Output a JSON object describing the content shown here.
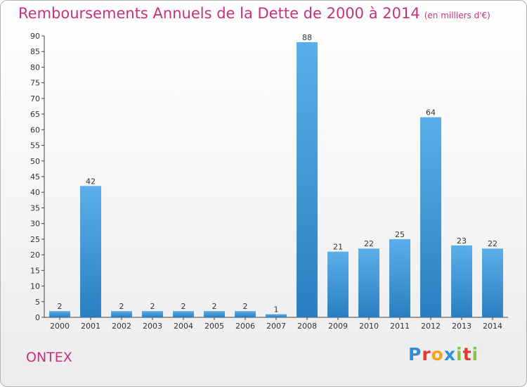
{
  "header": {
    "title": "Remboursements Annuels de la Dette de 2000 à 2014",
    "unit": "(en milliers d'€)"
  },
  "footer": {
    "commune": "ONTEX",
    "logo_text": "Proxiti",
    "logo_colors": [
      "#2e8fd6",
      "#e23a2e",
      "#f5a21a",
      "#2e8fd6",
      "#8cc63f",
      "#e23a2e",
      "#8cc63f"
    ]
  },
  "chart_data": {
    "type": "bar",
    "title": "Remboursements Annuels de la Dette de 2000 à 2014",
    "subtitle": "(en milliers d'€)",
    "xlabel": "",
    "ylabel": "",
    "categories": [
      "2000",
      "2001",
      "2002",
      "2003",
      "2004",
      "2005",
      "2006",
      "2007",
      "2008",
      "2009",
      "2010",
      "2011",
      "2012",
      "2013",
      "2014"
    ],
    "values": [
      2,
      42,
      2,
      2,
      2,
      2,
      2,
      1,
      88,
      21,
      22,
      25,
      64,
      23,
      22
    ],
    "ylim": [
      0,
      90
    ],
    "yticks": [
      0,
      5,
      10,
      15,
      20,
      25,
      30,
      35,
      40,
      45,
      50,
      55,
      60,
      65,
      70,
      75,
      80,
      85,
      90
    ],
    "grid": false,
    "bar_color_top": "#5aaee9",
    "bar_color_bottom": "#2a7fc0",
    "text_color": "#c8307a"
  }
}
